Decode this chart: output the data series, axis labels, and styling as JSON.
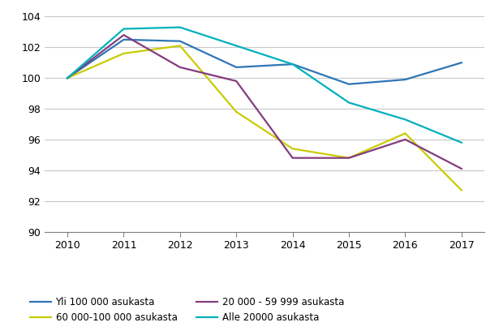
{
  "years": [
    2010,
    2011,
    2012,
    2013,
    2014,
    2015,
    2016,
    2017
  ],
  "series": {
    "Yli 100 000 asukasta": [
      100.0,
      102.5,
      102.4,
      100.7,
      100.9,
      99.6,
      99.9,
      101.0
    ],
    "60 000-100 000 asukasta": [
      100.0,
      101.6,
      102.1,
      97.8,
      95.4,
      94.8,
      96.4,
      92.7
    ],
    "20 000 - 59 999 asukasta": [
      100.0,
      102.8,
      100.7,
      99.8,
      94.8,
      94.8,
      96.0,
      94.1
    ],
    "Alle 20000 asukasta": [
      100.0,
      103.2,
      103.3,
      102.1,
      100.9,
      98.4,
      97.3,
      95.8
    ]
  },
  "colors": {
    "Yli 100 000 asukasta": "#2E75B6",
    "60 000-100 000 asukasta": "#C9CC00",
    "20 000 - 59 999 asukasta": "#833C7E",
    "Alle 20000 asukasta": "#00B0BD"
  },
  "ylim": [
    90,
    104
  ],
  "yticks": [
    90,
    92,
    94,
    96,
    98,
    100,
    102,
    104
  ],
  "background_color": "#FFFFFF",
  "grid_color": "#C8C8C8",
  "legend_order": [
    "Yli 100 000 asukasta",
    "60 000-100 000 asukasta",
    "20 000 - 59 999 asukasta",
    "Alle 20000 asukasta"
  ]
}
